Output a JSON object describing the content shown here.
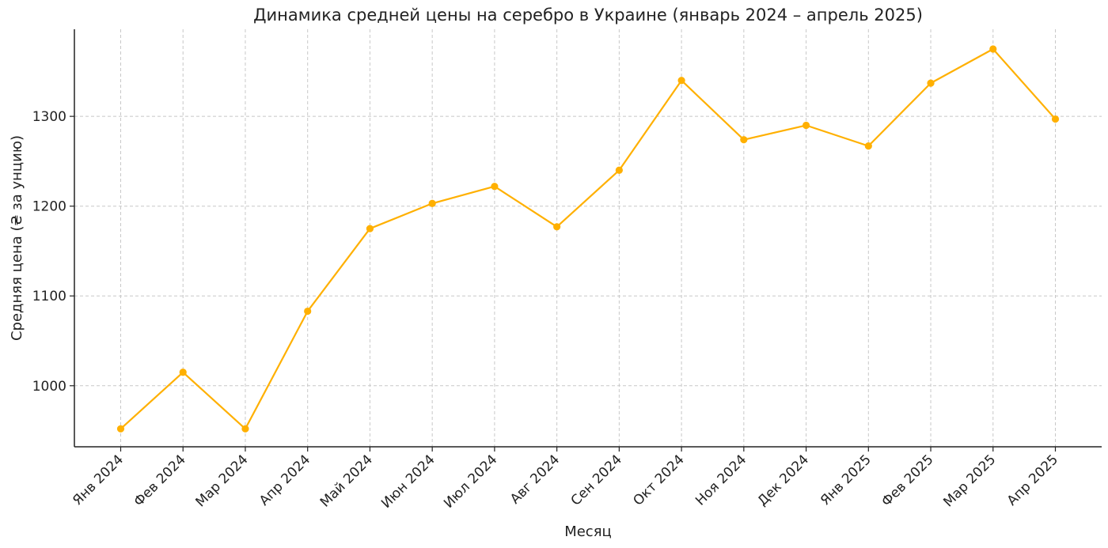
{
  "chart_data": {
    "type": "line",
    "title": "Динамика средней цены на серебро в Украине (январь 2024 – апрель 2025)",
    "xlabel": "Месяц",
    "ylabel": "Средняя цена (₴ за унцию)",
    "categories": [
      "Янв 2024",
      "Фев 2024",
      "Мар 2024",
      "Апр 2024",
      "Май 2024",
      "Июн 2024",
      "Июл 2024",
      "Авг 2024",
      "Сен 2024",
      "Окт 2024",
      "Ноя 2024",
      "Дек 2024",
      "Янв 2025",
      "Фев 2025",
      "Мар 2025",
      "Апр 2025"
    ],
    "series": [
      {
        "values": [
          952,
          1015,
          952,
          1083,
          1175,
          1203,
          1222,
          1177,
          1240,
          1340,
          1274,
          1290,
          1267,
          1337,
          1375,
          1297
        ],
        "color": "#FFB000"
      }
    ],
    "yticks": [
      1000,
      1100,
      1200,
      1300
    ],
    "ylim": [
      932,
      1397
    ],
    "grid": true,
    "line_style": "solid with circle markers"
  }
}
